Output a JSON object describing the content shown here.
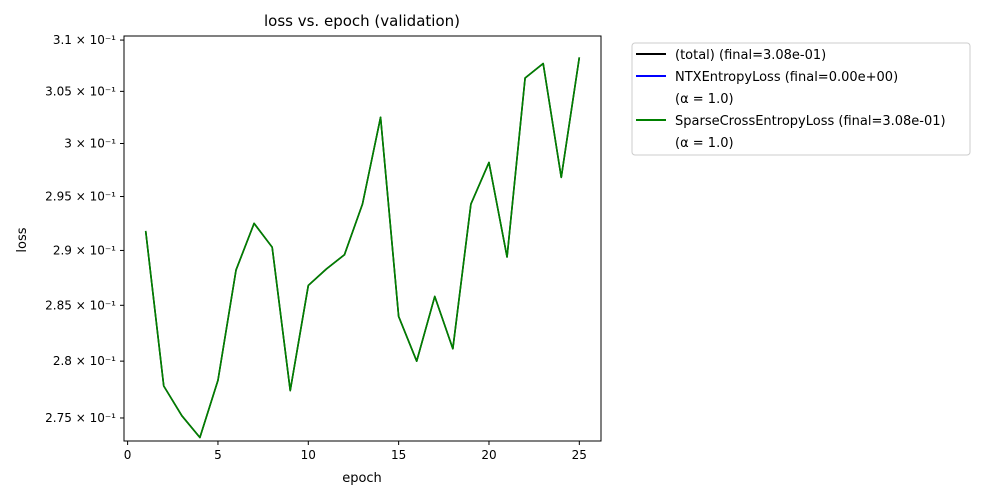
{
  "chart_data": {
    "type": "line",
    "title": "loss vs. epoch (validation)",
    "xlabel": "epoch",
    "ylabel": "loss",
    "xlim": [
      -0.2,
      26.2
    ],
    "ylim": [
      0.273,
      0.3104
    ],
    "yscale": "log",
    "grid": false,
    "legend_placement": "outside-top-right",
    "x_ticks": [
      0,
      5,
      10,
      15,
      20,
      25
    ],
    "x_tick_labels": [
      "0",
      "5",
      "10",
      "15",
      "20",
      "25"
    ],
    "y_ticks": [
      0.275,
      0.28,
      0.285,
      0.29,
      0.295,
      0.3,
      0.305,
      0.31
    ],
    "y_tick_labels": [
      "2.75 × 10⁻¹",
      "2.8 × 10⁻¹",
      "2.85 × 10⁻¹",
      "2.9 × 10⁻¹",
      "2.95 × 10⁻¹",
      "3 × 10⁻¹",
      "3.05 × 10⁻¹",
      "3.1 × 10⁻¹"
    ],
    "x": [
      1,
      2,
      3,
      4,
      5,
      6,
      7,
      8,
      9,
      10,
      11,
      12,
      13,
      14,
      15,
      16,
      17,
      18,
      19,
      20,
      21,
      22,
      23,
      24,
      25
    ],
    "series": [
      {
        "name": "(total)      (final=3.08e-01)",
        "legend_lines": [
          "(total)      (final=3.08e-01)"
        ],
        "color": "#000000",
        "values": [
          0.2918,
          0.2778,
          0.2752,
          0.2733,
          0.2783,
          0.2882,
          0.2925,
          0.2903,
          0.2774,
          0.2868,
          0.2883,
          0.2896,
          0.2943,
          0.3025,
          0.284,
          0.28,
          0.2858,
          0.2811,
          0.2943,
          0.2982,
          0.2894,
          0.3063,
          0.3077,
          0.2968,
          0.3083
        ]
      },
      {
        "name": "NTXEntropyLoss (final=0.00e+00) (α = 1.0)",
        "legend_lines": [
          "NTXEntropyLoss (final=0.00e+00)",
          "(α = 1.0)"
        ],
        "color": "#0000ff",
        "values": [
          0,
          0,
          0,
          0,
          0,
          0,
          0,
          0,
          0,
          0,
          0,
          0,
          0,
          0,
          0,
          0,
          0,
          0,
          0,
          0,
          0,
          0,
          0,
          0,
          0
        ]
      },
      {
        "name": "SparseCrossEntropyLoss (final=3.08e-01) (α = 1.0)",
        "legend_lines": [
          "SparseCrossEntropyLoss (final=3.08e-01)",
          "(α = 1.0)"
        ],
        "color": "#008000",
        "values": [
          0.2918,
          0.2778,
          0.2752,
          0.2733,
          0.2783,
          0.2882,
          0.2925,
          0.2903,
          0.2774,
          0.2868,
          0.2883,
          0.2896,
          0.2943,
          0.3025,
          0.284,
          0.28,
          0.2858,
          0.2811,
          0.2943,
          0.2982,
          0.2894,
          0.3063,
          0.3077,
          0.2968,
          0.3083
        ]
      }
    ]
  }
}
